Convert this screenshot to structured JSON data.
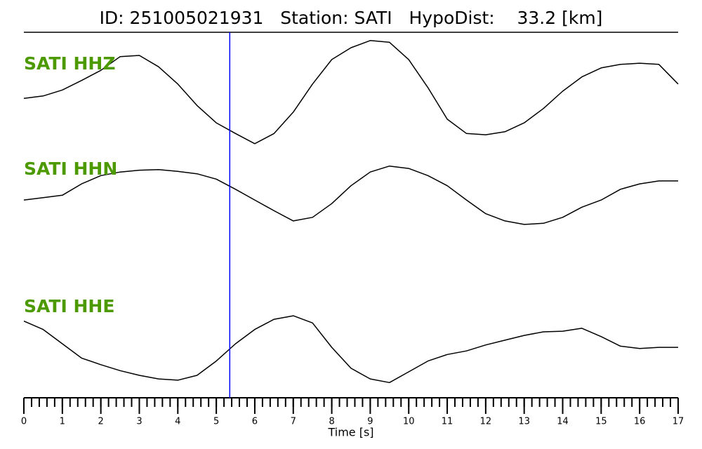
{
  "chart_data": {
    "type": "line",
    "title": "ID: 251005021931   Station: SATI   HypoDist:    33.2 [km]",
    "xlabel": "Time [s]",
    "x": [
      0,
      0.5,
      1,
      1.5,
      2,
      2.5,
      3,
      3.5,
      4,
      4.5,
      5,
      5.5,
      6,
      6.5,
      7,
      7.5,
      8,
      8.5,
      9,
      9.5,
      10,
      10.5,
      11,
      11.5,
      12,
      12.5,
      13,
      13.5,
      14,
      14.5,
      15,
      15.5,
      16,
      16.5,
      17
    ],
    "xlim": [
      0,
      17
    ],
    "xticks": [
      0,
      1,
      2,
      3,
      4,
      5,
      6,
      7,
      8,
      9,
      10,
      11,
      12,
      13,
      14,
      15,
      16,
      17
    ],
    "xminor_step": 0.2,
    "ylim": [
      -1,
      1
    ],
    "label_color": "#4c9a00",
    "series": [
      {
        "name": "SATI HHZ",
        "color": "#000000",
        "values": [
          -0.12,
          -0.08,
          0.02,
          0.18,
          0.35,
          0.58,
          0.6,
          0.41,
          0.12,
          -0.24,
          -0.53,
          -0.71,
          -0.88,
          -0.71,
          -0.35,
          0.12,
          0.53,
          0.73,
          0.85,
          0.82,
          0.53,
          0.06,
          -0.47,
          -0.71,
          -0.73,
          -0.68,
          -0.53,
          -0.29,
          0,
          0.24,
          0.39,
          0.45,
          0.47,
          0.45,
          0.12
        ]
      },
      {
        "name": "SATI HHN",
        "color": "#000000",
        "values": [
          -0.06,
          -0.02,
          0.02,
          0.21,
          0.35,
          0.41,
          0.44,
          0.45,
          0.42,
          0.38,
          0.29,
          0.12,
          -0.06,
          -0.24,
          -0.41,
          -0.35,
          -0.12,
          0.18,
          0.41,
          0.51,
          0.47,
          0.35,
          0.18,
          -0.06,
          -0.29,
          -0.41,
          -0.47,
          -0.45,
          -0.35,
          -0.18,
          -0.06,
          0.12,
          0.21,
          0.26,
          0.26
        ]
      },
      {
        "name": "SATI HHE",
        "color": "#000000",
        "values": [
          0.38,
          0.24,
          0,
          -0.24,
          -0.35,
          -0.45,
          -0.53,
          -0.59,
          -0.61,
          -0.53,
          -0.29,
          0,
          0.24,
          0.41,
          0.47,
          0.35,
          -0.06,
          -0.41,
          -0.59,
          -0.65,
          -0.47,
          -0.29,
          -0.18,
          -0.12,
          -0.02,
          0.06,
          0.14,
          0.2,
          0.21,
          0.26,
          0.12,
          -0.04,
          -0.08,
          -0.06,
          -0.06
        ]
      }
    ],
    "markers": [
      {
        "x": 5.35,
        "color": "#0000ff"
      }
    ]
  }
}
